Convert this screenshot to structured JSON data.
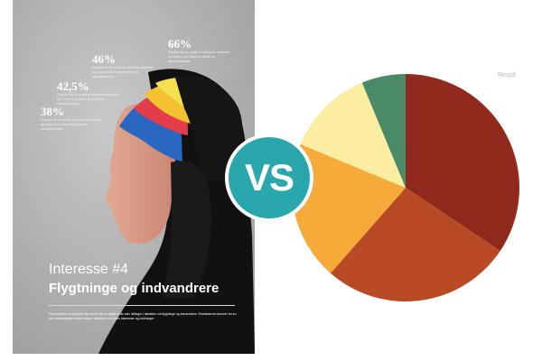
{
  "poster": {
    "stats": [
      {
        "percent": "66%",
        "text": "Svar/er lib ei modit et omnimo dolorem sp lorem ipsi dummy tekst fra spørgeskema"
      },
      {
        "percent": "46%",
        "text": "Svar/er lib ei modit et omnimo dolorem sp lorem ipsi dummy tekst fra spørgeskema"
      },
      {
        "percent": "42,5%",
        "text": "Svar/er lib ei modit et omnimo dolorem sp lorem ipsi dummy tekst fra spørgeskema"
      },
      {
        "percent": "38%",
        "text": "Svar/er lib ei modit et omnimo dolorem sp lorem ipsi dummy tekst fra spørgeskema"
      }
    ],
    "label": "Interesse #4",
    "title": "Flygtninge og indvandrere",
    "body": "Procentdelen af danskere der mener det er vigtigt at de selv deltager i debatten om flygtninge og indvandrere. Resultaterne kommer fra en stor undersøgelse blandt voksne danskere om deres interesser og holdninger."
  },
  "badge": {
    "text": "VS"
  },
  "chart_data": {
    "type": "pie",
    "label": "Result",
    "footnote": "",
    "values": [
      33,
      26,
      19,
      12,
      6
    ],
    "colors": [
      "#8f2a1c",
      "#b94a26",
      "#f6aa3a",
      "#fbeea0",
      "#4a8a66"
    ],
    "start_angle_deg": 0
  }
}
